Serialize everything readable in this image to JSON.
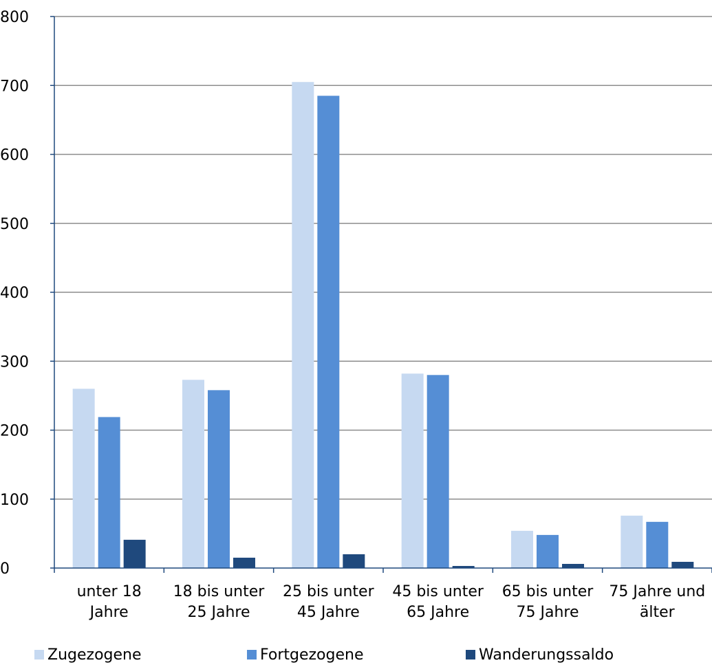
{
  "chart_data": {
    "type": "bar",
    "categories": [
      [
        "unter 18",
        "Jahre"
      ],
      [
        "18 bis unter",
        "25 Jahre"
      ],
      [
        "25 bis unter",
        "45 Jahre"
      ],
      [
        "45 bis unter",
        "65 Jahre"
      ],
      [
        "65 bis unter",
        "75 Jahre"
      ],
      [
        "75 Jahre und",
        "älter"
      ]
    ],
    "series": [
      {
        "name": "Zugezogene",
        "color": "#c6d9f1",
        "values": [
          260,
          273,
          705,
          282,
          54,
          76
        ]
      },
      {
        "name": "Fortgezogene",
        "color": "#558ed5",
        "values": [
          219,
          258,
          685,
          280,
          48,
          67
        ]
      },
      {
        "name": "Wanderungssaldo",
        "color": "#1f497d",
        "values": [
          41,
          15,
          20,
          3,
          6,
          9
        ]
      }
    ],
    "ylim": [
      0,
      800
    ],
    "yticks": [
      "0",
      "100",
      "200",
      "300",
      "400",
      "500",
      "600",
      "700",
      "800"
    ],
    "grid": true,
    "legend_position": "bottom",
    "title": "",
    "xlabel": "",
    "ylabel": ""
  }
}
